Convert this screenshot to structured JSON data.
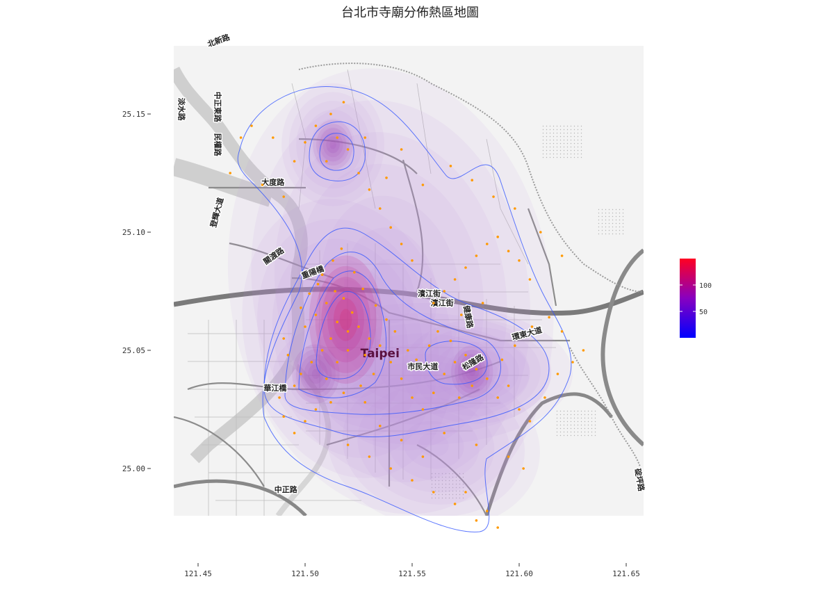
{
  "title": "台北市寺廟分佈熱區地圖",
  "x_ticks": [
    121.45,
    121.5,
    121.55,
    121.6,
    121.65
  ],
  "y_ticks": [
    25.0,
    25.05,
    25.1,
    25.15
  ],
  "x_tick_labels": [
    "121.45",
    "121.50",
    "121.55",
    "121.60",
    "121.65"
  ],
  "y_tick_labels": [
    "25.00",
    "25.05",
    "25.10",
    "25.15"
  ],
  "extent": {
    "lon": [
      121.44,
      121.66
    ],
    "lat": [
      24.98,
      25.18
    ]
  },
  "city_label": "Taipei",
  "city_label_lonlat": [
    121.535,
    25.047
  ],
  "road_labels": [
    {
      "text": "大度路",
      "lon": 121.485,
      "lat": 25.12,
      "rotate": 0
    },
    {
      "text": "中正東路",
      "lon": 121.458,
      "lat": 25.153,
      "rotate": 90
    },
    {
      "text": "民權路",
      "lon": 121.458,
      "lat": 25.137,
      "rotate": 90
    },
    {
      "text": "淡水路",
      "lon": 121.441,
      "lat": 25.152,
      "rotate": 90
    },
    {
      "text": "登輝大道",
      "lon": 121.46,
      "lat": 25.108,
      "rotate": -75
    },
    {
      "text": "關渡路",
      "lon": 121.486,
      "lat": 25.089,
      "rotate": -35
    },
    {
      "text": "重陽橋",
      "lon": 121.504,
      "lat": 25.082,
      "rotate": -20
    },
    {
      "text": "濱江街",
      "lon": 121.558,
      "lat": 25.073,
      "rotate": 0
    },
    {
      "text": "濱江街",
      "lon": 121.564,
      "lat": 25.069,
      "rotate": 0
    },
    {
      "text": "健康路",
      "lon": 121.575,
      "lat": 25.064,
      "rotate": 80
    },
    {
      "text": "環東大道",
      "lon": 121.604,
      "lat": 25.056,
      "rotate": -15
    },
    {
      "text": "市民大道",
      "lon": 121.555,
      "lat": 25.042,
      "rotate": 0
    },
    {
      "text": "松隆路",
      "lon": 121.579,
      "lat": 25.044,
      "rotate": -30
    },
    {
      "text": "華江橋",
      "lon": 121.486,
      "lat": 25.033,
      "rotate": 0
    },
    {
      "text": "中正路",
      "lon": 121.491,
      "lat": 24.99,
      "rotate": 0
    },
    {
      "text": "北新路",
      "lon": 121.46,
      "lat": 25.18,
      "rotate": -20
    },
    {
      "text": "碇坪路",
      "lon": 121.655,
      "lat": 24.995,
      "rotate": 80
    }
  ],
  "chart_data": {
    "type": "heatmap",
    "title": "台北市寺廟分佈熱區地圖",
    "xlabel": "",
    "ylabel": "",
    "xlim": [
      121.44,
      121.66
    ],
    "ylim": [
      24.98,
      25.18
    ],
    "density_hotspots": [
      {
        "lon": 121.519,
        "lat": 25.063,
        "weight": 150
      },
      {
        "lon": 121.513,
        "lat": 25.137,
        "weight": 60
      },
      {
        "lon": 121.578,
        "lat": 25.041,
        "weight": 65
      },
      {
        "lon": 121.505,
        "lat": 25.04,
        "weight": 80
      }
    ],
    "legend": {
      "ticks": [
        50,
        100
      ],
      "range": [
        0,
        150
      ],
      "colors": [
        "#0000ff",
        "#8800c0",
        "#ff0022"
      ],
      "position": "right"
    },
    "point_color": "#ff9900",
    "contour_color": "#3355ff",
    "points": [
      [
        121.5,
        25.06
      ],
      [
        121.505,
        25.065
      ],
      [
        121.51,
        25.07
      ],
      [
        121.515,
        25.062
      ],
      [
        121.52,
        25.058
      ],
      [
        121.518,
        25.072
      ],
      [
        121.512,
        25.055
      ],
      [
        121.508,
        25.05
      ],
      [
        121.522,
        25.066
      ],
      [
        121.514,
        25.075
      ],
      [
        121.506,
        25.078
      ],
      [
        121.525,
        25.06
      ],
      [
        121.503,
        25.045
      ],
      [
        121.498,
        25.04
      ],
      [
        121.495,
        25.035
      ],
      [
        121.51,
        25.038
      ],
      [
        121.515,
        25.045
      ],
      [
        121.52,
        25.05
      ],
      [
        121.528,
        25.048
      ],
      [
        121.532,
        25.04
      ],
      [
        121.526,
        25.035
      ],
      [
        121.518,
        25.032
      ],
      [
        121.512,
        25.028
      ],
      [
        121.505,
        25.025
      ],
      [
        121.5,
        25.02
      ],
      [
        121.495,
        25.015
      ],
      [
        121.49,
        25.022
      ],
      [
        121.488,
        25.03
      ],
      [
        121.53,
        25.055
      ],
      [
        121.535,
        25.052
      ],
      [
        121.54,
        25.045
      ],
      [
        121.545,
        25.038
      ],
      [
        121.55,
        25.03
      ],
      [
        121.555,
        25.025
      ],
      [
        121.56,
        25.032
      ],
      [
        121.565,
        25.04
      ],
      [
        121.57,
        25.045
      ],
      [
        121.575,
        25.048
      ],
      [
        121.58,
        25.042
      ],
      [
        121.585,
        25.038
      ],
      [
        121.578,
        25.035
      ],
      [
        121.572,
        25.03
      ],
      [
        121.59,
        25.03
      ],
      [
        121.595,
        25.035
      ],
      [
        121.6,
        25.025
      ],
      [
        121.605,
        25.02
      ],
      [
        121.612,
        25.03
      ],
      [
        121.618,
        25.04
      ],
      [
        121.56,
        25.07
      ],
      [
        121.565,
        25.075
      ],
      [
        121.57,
        25.08
      ],
      [
        121.575,
        25.085
      ],
      [
        121.58,
        25.09
      ],
      [
        121.585,
        25.095
      ],
      [
        121.59,
        25.098
      ],
      [
        121.595,
        25.092
      ],
      [
        121.6,
        25.088
      ],
      [
        121.605,
        25.08
      ],
      [
        121.583,
        25.07
      ],
      [
        121.573,
        25.065
      ],
      [
        121.51,
        25.13
      ],
      [
        121.515,
        25.14
      ],
      [
        121.52,
        25.135
      ],
      [
        121.505,
        25.145
      ],
      [
        121.512,
        25.15
      ],
      [
        121.518,
        25.155
      ],
      [
        121.5,
        25.138
      ],
      [
        121.495,
        25.13
      ],
      [
        121.525,
        25.125
      ],
      [
        121.53,
        25.118
      ],
      [
        121.535,
        25.11
      ],
      [
        121.54,
        25.102
      ],
      [
        121.545,
        25.095
      ],
      [
        121.55,
        25.088
      ],
      [
        121.538,
        25.123
      ],
      [
        121.528,
        25.14
      ],
      [
        121.49,
        25.115
      ],
      [
        121.48,
        25.12
      ],
      [
        121.47,
        25.14
      ],
      [
        121.475,
        25.145
      ],
      [
        121.485,
        25.14
      ],
      [
        121.465,
        25.125
      ],
      [
        121.545,
        25.135
      ],
      [
        121.555,
        25.12
      ],
      [
        121.52,
        25.01
      ],
      [
        121.53,
        25.005
      ],
      [
        121.54,
        25.0
      ],
      [
        121.55,
        24.995
      ],
      [
        121.56,
        24.99
      ],
      [
        121.57,
        24.985
      ],
      [
        121.575,
        24.99
      ],
      [
        121.58,
        24.978
      ],
      [
        121.585,
        24.982
      ],
      [
        121.59,
        24.975
      ],
      [
        121.555,
        25.005
      ],
      [
        121.545,
        25.012
      ],
      [
        121.535,
        25.018
      ],
      [
        121.565,
        25.015
      ],
      [
        121.58,
        25.01
      ],
      [
        121.595,
        25.005
      ],
      [
        121.602,
        25.0
      ],
      [
        121.528,
        25.028
      ],
      [
        121.492,
        25.048
      ],
      [
        121.49,
        25.055
      ],
      [
        121.498,
        25.068
      ],
      [
        121.502,
        25.074
      ],
      [
        121.508,
        25.082
      ],
      [
        121.513,
        25.088
      ],
      [
        121.517,
        25.093
      ],
      [
        121.523,
        25.083
      ],
      [
        121.527,
        25.076
      ],
      [
        121.533,
        25.069
      ],
      [
        121.538,
        25.063
      ],
      [
        121.542,
        25.058
      ],
      [
        121.548,
        25.05
      ],
      [
        121.552,
        25.046
      ],
      [
        121.558,
        25.052
      ],
      [
        121.562,
        25.058
      ],
      [
        121.568,
        25.054
      ],
      [
        121.592,
        25.046
      ],
      [
        121.598,
        25.052
      ],
      [
        121.606,
        25.06
      ],
      [
        121.614,
        25.064
      ],
      [
        121.62,
        25.058
      ],
      [
        121.625,
        25.045
      ],
      [
        121.63,
        25.05
      ],
      [
        121.62,
        25.09
      ],
      [
        121.61,
        25.1
      ],
      [
        121.598,
        25.11
      ],
      [
        121.588,
        25.115
      ],
      [
        121.578,
        25.122
      ],
      [
        121.568,
        25.128
      ]
    ]
  }
}
